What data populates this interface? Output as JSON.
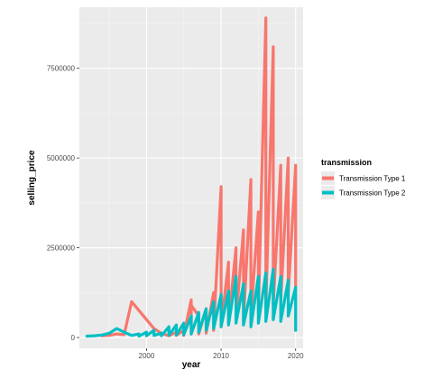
{
  "chart_data": {
    "type": "line",
    "title": "",
    "xlabel": "year",
    "ylabel": "selling_price",
    "xlim": [
      1991,
      2021
    ],
    "ylim": [
      -300000,
      9200000
    ],
    "x_ticks": [
      2000,
      2010,
      2020
    ],
    "y_ticks": [
      0,
      2500000,
      5000000,
      7500000
    ],
    "grid": true,
    "legend": {
      "title": "transmission",
      "position": "right"
    },
    "series": [
      {
        "name": "Transmission Type 1",
        "color": "#F8766D",
        "points": [
          [
            1994,
            50000
          ],
          [
            1995,
            60000
          ],
          [
            1996,
            100000
          ],
          [
            1997,
            80000
          ],
          [
            1998,
            1000000
          ],
          [
            1999,
            750000
          ],
          [
            2000,
            500000
          ],
          [
            2001,
            250000
          ],
          [
            2002,
            120000
          ],
          [
            2003,
            50000
          ],
          [
            2004,
            150000
          ],
          [
            2004,
            60000
          ],
          [
            2005,
            200000
          ],
          [
            2005,
            60000
          ],
          [
            2006,
            1050000
          ],
          [
            2006,
            100000
          ],
          [
            2006,
            900000
          ],
          [
            2007,
            600000
          ],
          [
            2007,
            100000
          ],
          [
            2008,
            800000
          ],
          [
            2008,
            120000
          ],
          [
            2009,
            1250000
          ],
          [
            2009,
            200000
          ],
          [
            2010,
            4200000
          ],
          [
            2010,
            300000
          ],
          [
            2011,
            2100000
          ],
          [
            2011,
            400000
          ],
          [
            2012,
            2500000
          ],
          [
            2012,
            500000
          ],
          [
            2013,
            3000000
          ],
          [
            2013,
            450000
          ],
          [
            2014,
            4400000
          ],
          [
            2014,
            600000
          ],
          [
            2015,
            3500000
          ],
          [
            2015,
            700000
          ],
          [
            2016,
            8900000
          ],
          [
            2016,
            800000
          ],
          [
            2017,
            8100000
          ],
          [
            2017,
            900000
          ],
          [
            2018,
            4800000
          ],
          [
            2018,
            1000000
          ],
          [
            2019,
            5000000
          ],
          [
            2019,
            1200000
          ],
          [
            2020,
            4800000
          ],
          [
            2020,
            1450000
          ]
        ]
      },
      {
        "name": "Transmission Type 2",
        "color": "#00BFC4",
        "points": [
          [
            1992,
            40000
          ],
          [
            1993,
            50000
          ],
          [
            1994,
            70000
          ],
          [
            1995,
            120000
          ],
          [
            1996,
            250000
          ],
          [
            1997,
            150000
          ],
          [
            1998,
            60000
          ],
          [
            1999,
            100000
          ],
          [
            1999,
            40000
          ],
          [
            2000,
            150000
          ],
          [
            2000,
            50000
          ],
          [
            2001,
            200000
          ],
          [
            2001,
            60000
          ],
          [
            2002,
            120000
          ],
          [
            2002,
            50000
          ],
          [
            2003,
            300000
          ],
          [
            2003,
            60000
          ],
          [
            2004,
            350000
          ],
          [
            2004,
            70000
          ],
          [
            2005,
            400000
          ],
          [
            2005,
            80000
          ],
          [
            2006,
            600000
          ],
          [
            2006,
            100000
          ],
          [
            2007,
            700000
          ],
          [
            2007,
            150000
          ],
          [
            2008,
            800000
          ],
          [
            2008,
            200000
          ],
          [
            2009,
            1000000
          ],
          [
            2009,
            250000
          ],
          [
            2010,
            1200000
          ],
          [
            2010,
            300000
          ],
          [
            2011,
            1300000
          ],
          [
            2011,
            350000
          ],
          [
            2012,
            1700000
          ],
          [
            2012,
            400000
          ],
          [
            2013,
            1500000
          ],
          [
            2013,
            350000
          ],
          [
            2014,
            1300000
          ],
          [
            2014,
            300000
          ],
          [
            2015,
            1700000
          ],
          [
            2015,
            400000
          ],
          [
            2016,
            1800000
          ],
          [
            2016,
            450000
          ],
          [
            2017,
            1900000
          ],
          [
            2017,
            500000
          ],
          [
            2018,
            1700000
          ],
          [
            2018,
            450000
          ],
          [
            2019,
            1600000
          ],
          [
            2019,
            600000
          ],
          [
            2020,
            1400000
          ],
          [
            2020,
            200000
          ]
        ]
      }
    ]
  }
}
